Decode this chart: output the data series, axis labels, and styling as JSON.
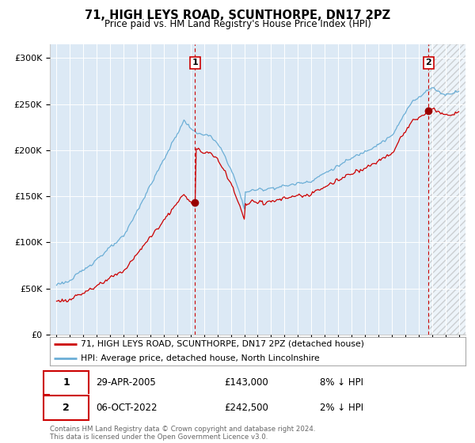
{
  "title": "71, HIGH LEYS ROAD, SCUNTHORPE, DN17 2PZ",
  "subtitle": "Price paid vs. HM Land Registry's House Price Index (HPI)",
  "footer": "Contains HM Land Registry data © Crown copyright and database right 2024.\nThis data is licensed under the Open Government Licence v3.0.",
  "legend_line1": "71, HIGH LEYS ROAD, SCUNTHORPE, DN17 2PZ (detached house)",
  "legend_line2": "HPI: Average price, detached house, North Lincolnshire",
  "transaction1_date": "29-APR-2005",
  "transaction1_price": "£143,000",
  "transaction1_hpi": "8% ↓ HPI",
  "transaction2_date": "06-OCT-2022",
  "transaction2_price": "£242,500",
  "transaction2_hpi": "2% ↓ HPI",
  "sale1_year": 2005.33,
  "sale1_value": 143000,
  "sale2_year": 2022.75,
  "sale2_value": 242500,
  "bg_color": "#dce9f5",
  "hpi_color": "#6baed6",
  "price_color": "#cc0000",
  "vline_color": "#cc0000",
  "dot_color": "#990000",
  "ylim": [
    0,
    300000
  ],
  "yticks": [
    0,
    50000,
    100000,
    150000,
    200000,
    250000,
    300000
  ],
  "ytick_labels": [
    "£0",
    "£50K",
    "£100K",
    "£150K",
    "£200K",
    "£250K",
    "£300K"
  ],
  "xstart": 1995,
  "xend": 2025
}
